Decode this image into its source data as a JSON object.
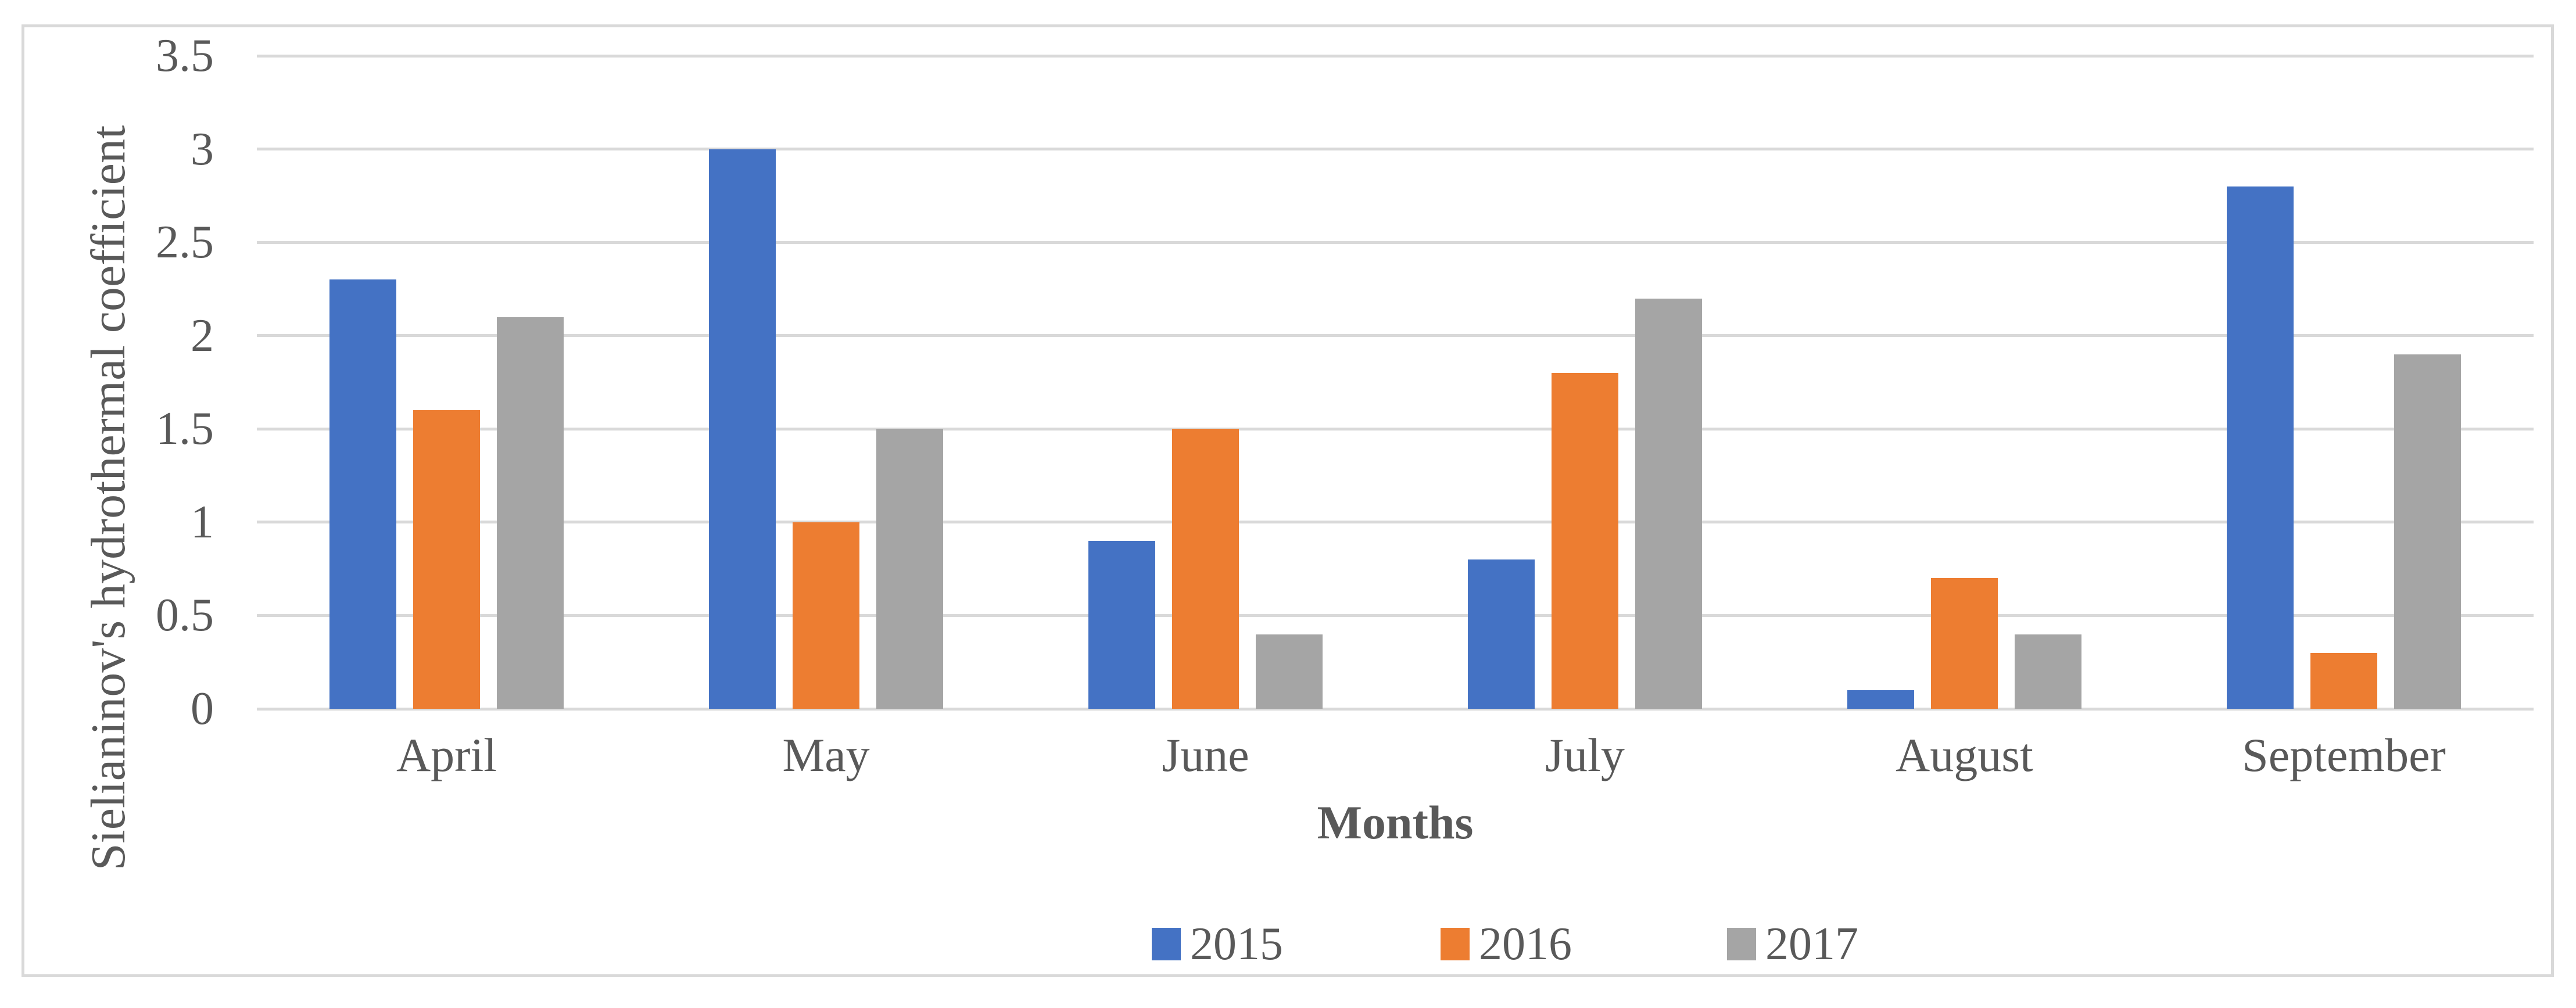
{
  "chart_data": {
    "type": "bar",
    "title": "",
    "categories": [
      "April",
      "May",
      "June",
      "July",
      "August",
      "September"
    ],
    "series": [
      {
        "name": "2015",
        "color": "#4472C4",
        "values": [
          2.3,
          3.0,
          0.9,
          0.8,
          0.1,
          2.8
        ]
      },
      {
        "name": "2016",
        "color": "#ED7D31",
        "values": [
          1.6,
          1.0,
          1.5,
          1.8,
          0.7,
          0.3
        ]
      },
      {
        "name": "2017",
        "color": "#A5A5A5",
        "values": [
          2.1,
          1.5,
          0.4,
          2.2,
          0.4,
          1.9
        ]
      }
    ],
    "xlabel": "Months",
    "ylabel": "Sielianinov's hydrothermal coefficient",
    "ylim": [
      0,
      3.5
    ],
    "ytick_step": 0.5,
    "yticks": [
      "0",
      "0.5",
      "1",
      "1.5",
      "2",
      "2.5",
      "3",
      "3.5"
    ],
    "grid": "horizontal",
    "legend_position": "bottom",
    "colors": {
      "gridline": "#D9D9D9",
      "frame_border": "#D9D9D9",
      "text": "#595959",
      "background": "#FFFFFF"
    }
  }
}
